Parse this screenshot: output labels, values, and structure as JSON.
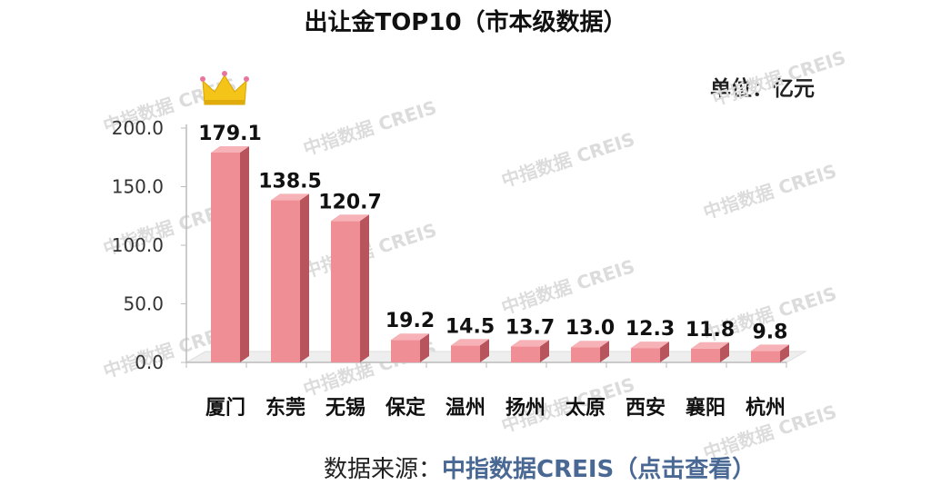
{
  "page": {
    "title": "出让金TOP10（市本级数据）",
    "unit": "单位：亿元",
    "source_prefix": "数据来源：",
    "source_link": "中指数据CREIS（点击查看）",
    "watermark": "中指数据 CREIS"
  },
  "icons": {
    "crown": "crown-icon"
  },
  "colors": {
    "bar_front": "#f08e95",
    "bar_side": "#b7545c",
    "bar_top": "#f6b2b6",
    "floor": "#eeeeee",
    "crown": "#f4c419",
    "link": "#4a6894"
  },
  "chart_data": {
    "type": "bar",
    "title": "出让金TOP10（市本级数据）",
    "categories": [
      "厦门",
      "东莞",
      "无锡",
      "保定",
      "温州",
      "扬州",
      "太原",
      "西安",
      "襄阳",
      "杭州"
    ],
    "values": [
      179.1,
      138.5,
      120.7,
      19.2,
      14.5,
      13.7,
      13.0,
      12.3,
      11.8,
      9.8
    ],
    "value_labels": [
      "179.1",
      "138.5",
      "120.7",
      "19.2",
      "14.5",
      "13.7",
      "13.0",
      "12.3",
      "11.8",
      "9.8"
    ],
    "y_ticks": [
      "0.0",
      "50.0",
      "100.0",
      "150.0",
      "200.0"
    ],
    "ylim": [
      0,
      200
    ],
    "xlabel": "",
    "ylabel": "",
    "unit": "亿元",
    "grid": false,
    "legend": "none"
  }
}
